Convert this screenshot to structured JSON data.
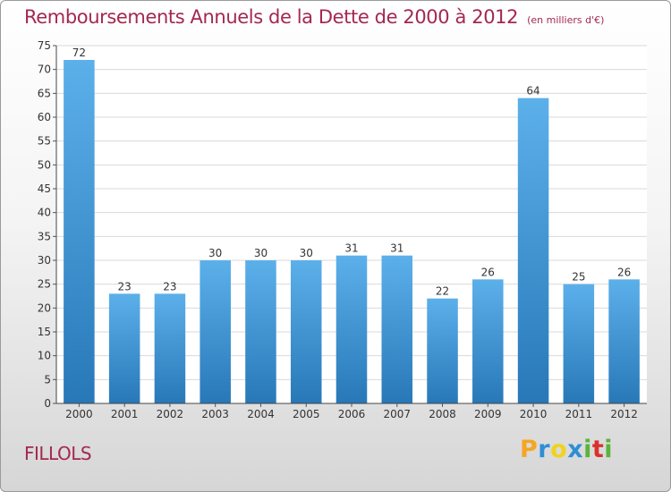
{
  "title": "Remboursements Annuels de la Dette de 2000 à 2012",
  "unit": "(en milliers d'€)",
  "commune": "FILLOLS",
  "brand": {
    "letters": [
      "P",
      "r",
      "o",
      "x",
      "i",
      "t",
      "i"
    ],
    "colors": [
      "#f5a623",
      "#2d8fd5",
      "#f2d21b",
      "#2d8fd5",
      "#5ab43c",
      "#d9322e",
      "#5ab43c"
    ]
  },
  "colors": {
    "bar_light": "#5cb0ea",
    "bar_dark": "#2878b8",
    "title": "#a4284f"
  },
  "chart_data": {
    "type": "bar",
    "categories": [
      "2000",
      "2001",
      "2002",
      "2003",
      "2004",
      "2005",
      "2006",
      "2007",
      "2008",
      "2009",
      "2010",
      "2011",
      "2012"
    ],
    "values": [
      72,
      23,
      23,
      30,
      30,
      30,
      31,
      31,
      22,
      26,
      64,
      25,
      26
    ],
    "ylim": [
      0,
      75
    ],
    "yticks": [
      0,
      5,
      10,
      15,
      20,
      25,
      30,
      35,
      40,
      45,
      50,
      55,
      60,
      65,
      70,
      75
    ],
    "grid": true,
    "data_labels": true
  }
}
